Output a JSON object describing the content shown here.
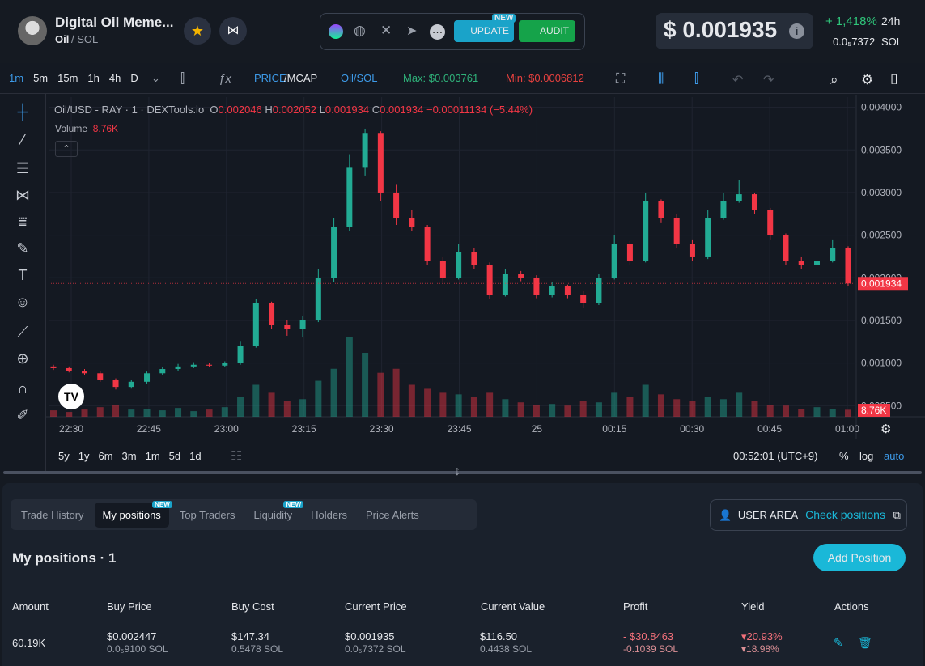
{
  "header": {
    "title": "Digital Oil Meme...",
    "ticker": "Oil",
    "pair": "/ SOL",
    "update": "UPDATE",
    "new_badge": "NEW",
    "audit": "AUDIT",
    "price": "$ 0.001935",
    "change": "+ 1,418%",
    "period": "24h",
    "price_sol": "0.0₅7372",
    "sol": "SOL"
  },
  "toolbar": {
    "timeframes": [
      "1m",
      "5m",
      "15m",
      "1h",
      "4h",
      "D"
    ],
    "price": "PRICE",
    "mcap": "/MCAP",
    "pair": "Oil/SOL",
    "max": "Max: $0.003761",
    "min": "Min: $0.0006812"
  },
  "legend": {
    "symbol": "Oil/USD - RAY · 1 · DEXTools.io",
    "o_label": "O",
    "o": "0.002046",
    "h_label": "H",
    "h": "0.002052",
    "l_label": "L",
    "l": "0.001934",
    "c_label": "C",
    "c": "0.001934",
    "change": "−0.00011134 (−5.44%)",
    "volume": "Volume",
    "volume_value": "8.76K"
  },
  "chart_data": {
    "type": "candlestick",
    "up_color": "#22ab94",
    "down_color": "#f23645",
    "grid": true,
    "open": [
      0.00096,
      0.00094,
      0.00091,
      0.00088,
      0.0008,
      0.00072,
      0.00078,
      0.00088,
      0.00093,
      0.00096,
      0.00098,
      0.00097,
      0.001,
      0.0012,
      0.0017,
      0.00145,
      0.0014,
      0.0015,
      0.002,
      0.0026,
      0.0033,
      0.0037,
      0.003,
      0.0027,
      0.0026,
      0.0022,
      0.002,
      0.0023,
      0.00215,
      0.0018,
      0.00205,
      0.002,
      0.0018,
      0.0019,
      0.0018,
      0.0017,
      0.002,
      0.0024,
      0.0022,
      0.0029,
      0.0027,
      0.0024,
      0.00225,
      0.0027,
      0.0029,
      0.00298,
      0.0028,
      0.0025,
      0.0022,
      0.00215,
      0.0022,
      0.00235
    ],
    "high": [
      0.00098,
      0.00096,
      0.00093,
      0.0009,
      0.00082,
      0.0008,
      0.0009,
      0.00095,
      0.00099,
      0.00101,
      0.001,
      0.00102,
      0.00125,
      0.00175,
      0.00172,
      0.0015,
      0.00155,
      0.0021,
      0.0027,
      0.00345,
      0.00375,
      0.00372,
      0.0031,
      0.0028,
      0.00262,
      0.00225,
      0.0024,
      0.00235,
      0.00218,
      0.0021,
      0.00208,
      0.00203,
      0.00195,
      0.00192,
      0.00185,
      0.00205,
      0.0025,
      0.00243,
      0.003,
      0.00292,
      0.00275,
      0.00245,
      0.0028,
      0.003,
      0.00315,
      0.003,
      0.00282,
      0.00252,
      0.00225,
      0.00223,
      0.00245,
      0.00237
    ],
    "low": [
      0.00092,
      0.00089,
      0.00086,
      0.00078,
      0.00069,
      0.0007,
      0.00076,
      0.00086,
      0.00091,
      0.00094,
      0.00095,
      0.00095,
      0.00098,
      0.00118,
      0.0014,
      0.00132,
      0.0013,
      0.00148,
      0.00195,
      0.00255,
      0.0032,
      0.0029,
      0.00262,
      0.00255,
      0.00215,
      0.00195,
      0.00198,
      0.0021,
      0.00175,
      0.00178,
      0.00196,
      0.00176,
      0.00177,
      0.00176,
      0.00165,
      0.00168,
      0.00198,
      0.00215,
      0.00218,
      0.00265,
      0.00235,
      0.0022,
      0.00222,
      0.00268,
      0.00288,
      0.00275,
      0.00245,
      0.00215,
      0.0021,
      0.00212,
      0.00218,
      0.0019
    ],
    "close": [
      0.00094,
      0.00091,
      0.00088,
      0.0008,
      0.00072,
      0.00078,
      0.00088,
      0.00093,
      0.00096,
      0.00098,
      0.00097,
      0.001,
      0.0012,
      0.0017,
      0.00145,
      0.0014,
      0.0015,
      0.002,
      0.0026,
      0.0033,
      0.0037,
      0.003,
      0.0027,
      0.0026,
      0.0022,
      0.002,
      0.0023,
      0.00215,
      0.0018,
      0.00205,
      0.002,
      0.0018,
      0.0019,
      0.0018,
      0.0017,
      0.002,
      0.0024,
      0.0022,
      0.0029,
      0.0027,
      0.0024,
      0.00225,
      0.0027,
      0.0029,
      0.00298,
      0.0028,
      0.0025,
      0.0022,
      0.00215,
      0.0022,
      0.00235,
      0.001934
    ],
    "volume": [
      8000,
      6000,
      9000,
      12000,
      15000,
      9000,
      10000,
      8000,
      11000,
      7000,
      9000,
      12000,
      25000,
      40000,
      30000,
      20000,
      22000,
      45000,
      60000,
      100000,
      80000,
      55000,
      60000,
      40000,
      35000,
      30000,
      28000,
      25000,
      30000,
      22000,
      18000,
      15000,
      16000,
      14000,
      20000,
      18000,
      30000,
      25000,
      40000,
      28000,
      22000,
      20000,
      25000,
      22000,
      30000,
      20000,
      15000,
      14000,
      10000,
      12000,
      10000,
      8760
    ],
    "ylim": [
      0.00037,
      0.00412
    ],
    "yticks": [
      {
        "value": 0.0005,
        "label": "0.000500"
      },
      {
        "value": 0.001,
        "label": "0.001000"
      },
      {
        "value": 0.0015,
        "label": "0.001500"
      },
      {
        "value": 0.002,
        "label": "0.002000"
      },
      {
        "value": 0.0025,
        "label": "0.002500"
      },
      {
        "value": 0.003,
        "label": "0.003000"
      },
      {
        "value": 0.0035,
        "label": "0.003500"
      },
      {
        "value": 0.004,
        "label": "0.004000"
      }
    ],
    "y2lim": [
      0,
      400000
    ],
    "x_labels": [
      "22:30",
      "22:45",
      "23:00",
      "23:15",
      "23:30",
      "23:45",
      "25",
      "00:15",
      "00:30",
      "00:45",
      "01:00"
    ],
    "last_price_label": "0.001934",
    "last_volume_label": "8.76K"
  },
  "range_bar": {
    "ranges": [
      "5y",
      "1y",
      "6m",
      "3m",
      "1m",
      "5d",
      "1d"
    ],
    "clock": "00:52:01 (UTC+9)",
    "percent": "%",
    "log": "log",
    "auto": "auto"
  },
  "tabs": {
    "items": [
      "Trade History",
      "My positions",
      "Top Traders",
      "Liquidity",
      "Holders",
      "Price Alerts"
    ],
    "new": "NEW",
    "user_area": "USER AREA",
    "check": "Check positions"
  },
  "positions": {
    "title": "My positions · 1",
    "add": "Add Position",
    "headers": [
      "Amount",
      "Buy Price",
      "Buy Cost",
      "Current Price",
      "Current Value",
      "Profit",
      "Yield",
      "Actions"
    ],
    "row": {
      "amount": "60.19K",
      "buy_price": "$0.002447",
      "buy_price_sol": "0.0₅9100 SOL",
      "buy_cost": "$147.34",
      "buy_cost_sol": "0.5478 SOL",
      "current_price": "$0.001935",
      "current_price_sol": "0.0₅7372 SOL",
      "current_value": "$116.50",
      "current_value_sol": "0.4438 SOL",
      "profit": "- $30.8463",
      "profit_sol": "-0.1039 SOL",
      "yield": "20.93%",
      "yield2": "18.98%"
    }
  }
}
